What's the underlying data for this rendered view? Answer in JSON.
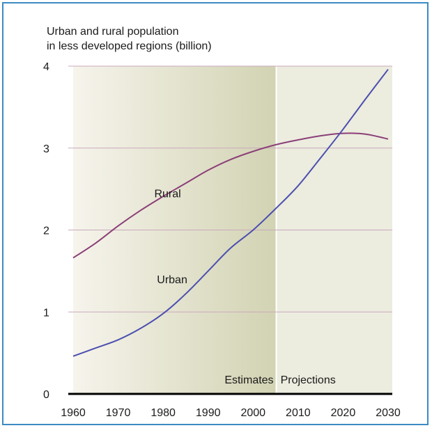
{
  "chart_data": {
    "type": "line",
    "title_lines": [
      "Urban and rural population",
      "in less developed regions (billion)"
    ],
    "x_ticks": [
      1960,
      1970,
      1980,
      1990,
      2000,
      2010,
      2020,
      2030
    ],
    "y_ticks": [
      0,
      1,
      2,
      3,
      4
    ],
    "xlim": [
      1960,
      2030
    ],
    "ylim": [
      0,
      4
    ],
    "series": [
      {
        "name": "Rural",
        "color": "#8b3f78",
        "x": [
          1960,
          1965,
          1970,
          1975,
          1980,
          1985,
          1990,
          1995,
          2000,
          2005,
          2010,
          2015,
          2020,
          2025,
          2030
        ],
        "y": [
          1.66,
          1.84,
          2.05,
          2.24,
          2.41,
          2.57,
          2.73,
          2.86,
          2.96,
          3.04,
          3.1,
          3.15,
          3.18,
          3.17,
          3.11
        ]
      },
      {
        "name": "Urban",
        "color": "#4b4faf",
        "x": [
          1960,
          1965,
          1970,
          1975,
          1980,
          1985,
          1990,
          1995,
          2000,
          2005,
          2010,
          2015,
          2020,
          2025,
          2030
        ],
        "y": [
          0.46,
          0.56,
          0.66,
          0.8,
          0.98,
          1.22,
          1.5,
          1.78,
          2.0,
          2.26,
          2.54,
          2.88,
          3.23,
          3.6,
          3.96
        ]
      }
    ],
    "regions": [
      {
        "label": "Estimates",
        "from": 1960,
        "to": 2005
      },
      {
        "label": "Projections",
        "from": 2005,
        "to": 2030
      }
    ],
    "line_labels": {
      "rural": {
        "text": "Rural",
        "x": 1981,
        "y": 2.4
      },
      "urban": {
        "text": "Urban",
        "x": 1982,
        "y": 1.35
      }
    },
    "colors": {
      "estimates_shade_start": "#f6f4ec",
      "estimates_shade_end": "#d2d3b3",
      "projections_shade": "#ececdf",
      "grid": "#c9a9bd",
      "baseline": "#000000"
    },
    "grid": true
  }
}
